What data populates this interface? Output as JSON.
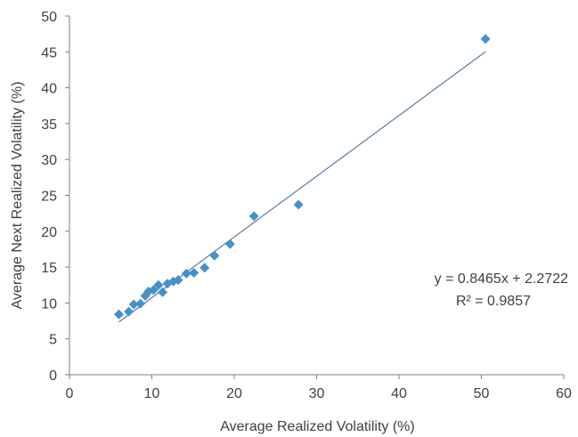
{
  "chart_data": {
    "type": "scatter",
    "title": "",
    "xlabel": "Average Realized Volatility (%)",
    "ylabel": "Average Next Realized Volatility (%)",
    "xlim": [
      0,
      60
    ],
    "ylim": [
      0,
      50
    ],
    "x_ticks": [
      0,
      10,
      20,
      30,
      40,
      50,
      60
    ],
    "y_ticks": [
      0,
      5,
      10,
      15,
      20,
      25,
      30,
      35,
      40,
      45,
      50
    ],
    "grid": false,
    "legend": "none",
    "series": [
      {
        "marker": "diamond",
        "color": "#4A90C2",
        "points": [
          {
            "x": 6.0,
            "y": 8.4
          },
          {
            "x": 7.2,
            "y": 8.8
          },
          {
            "x": 7.8,
            "y": 9.8
          },
          {
            "x": 8.6,
            "y": 9.9
          },
          {
            "x": 9.2,
            "y": 11.0
          },
          {
            "x": 9.6,
            "y": 11.6
          },
          {
            "x": 10.2,
            "y": 11.8
          },
          {
            "x": 10.8,
            "y": 12.5
          },
          {
            "x": 11.3,
            "y": 11.5
          },
          {
            "x": 11.9,
            "y": 12.7
          },
          {
            "x": 12.6,
            "y": 13.0
          },
          {
            "x": 13.2,
            "y": 13.2
          },
          {
            "x": 14.2,
            "y": 14.1
          },
          {
            "x": 15.1,
            "y": 14.2
          },
          {
            "x": 16.4,
            "y": 14.9
          },
          {
            "x": 17.6,
            "y": 16.6
          },
          {
            "x": 19.5,
            "y": 18.2
          },
          {
            "x": 22.4,
            "y": 22.1
          },
          {
            "x": 27.8,
            "y": 23.7
          },
          {
            "x": 50.5,
            "y": 46.8
          }
        ]
      }
    ],
    "trendline": {
      "slope": 0.8465,
      "intercept": 2.2722,
      "x_range": [
        6.0,
        50.5
      ],
      "color": "#5B7BA3"
    },
    "annotations": {
      "equation": "y = 0.8465x  + 2.2722",
      "r_squared": "R² = 0.9857"
    },
    "axis_color": "#7F7F7F"
  }
}
